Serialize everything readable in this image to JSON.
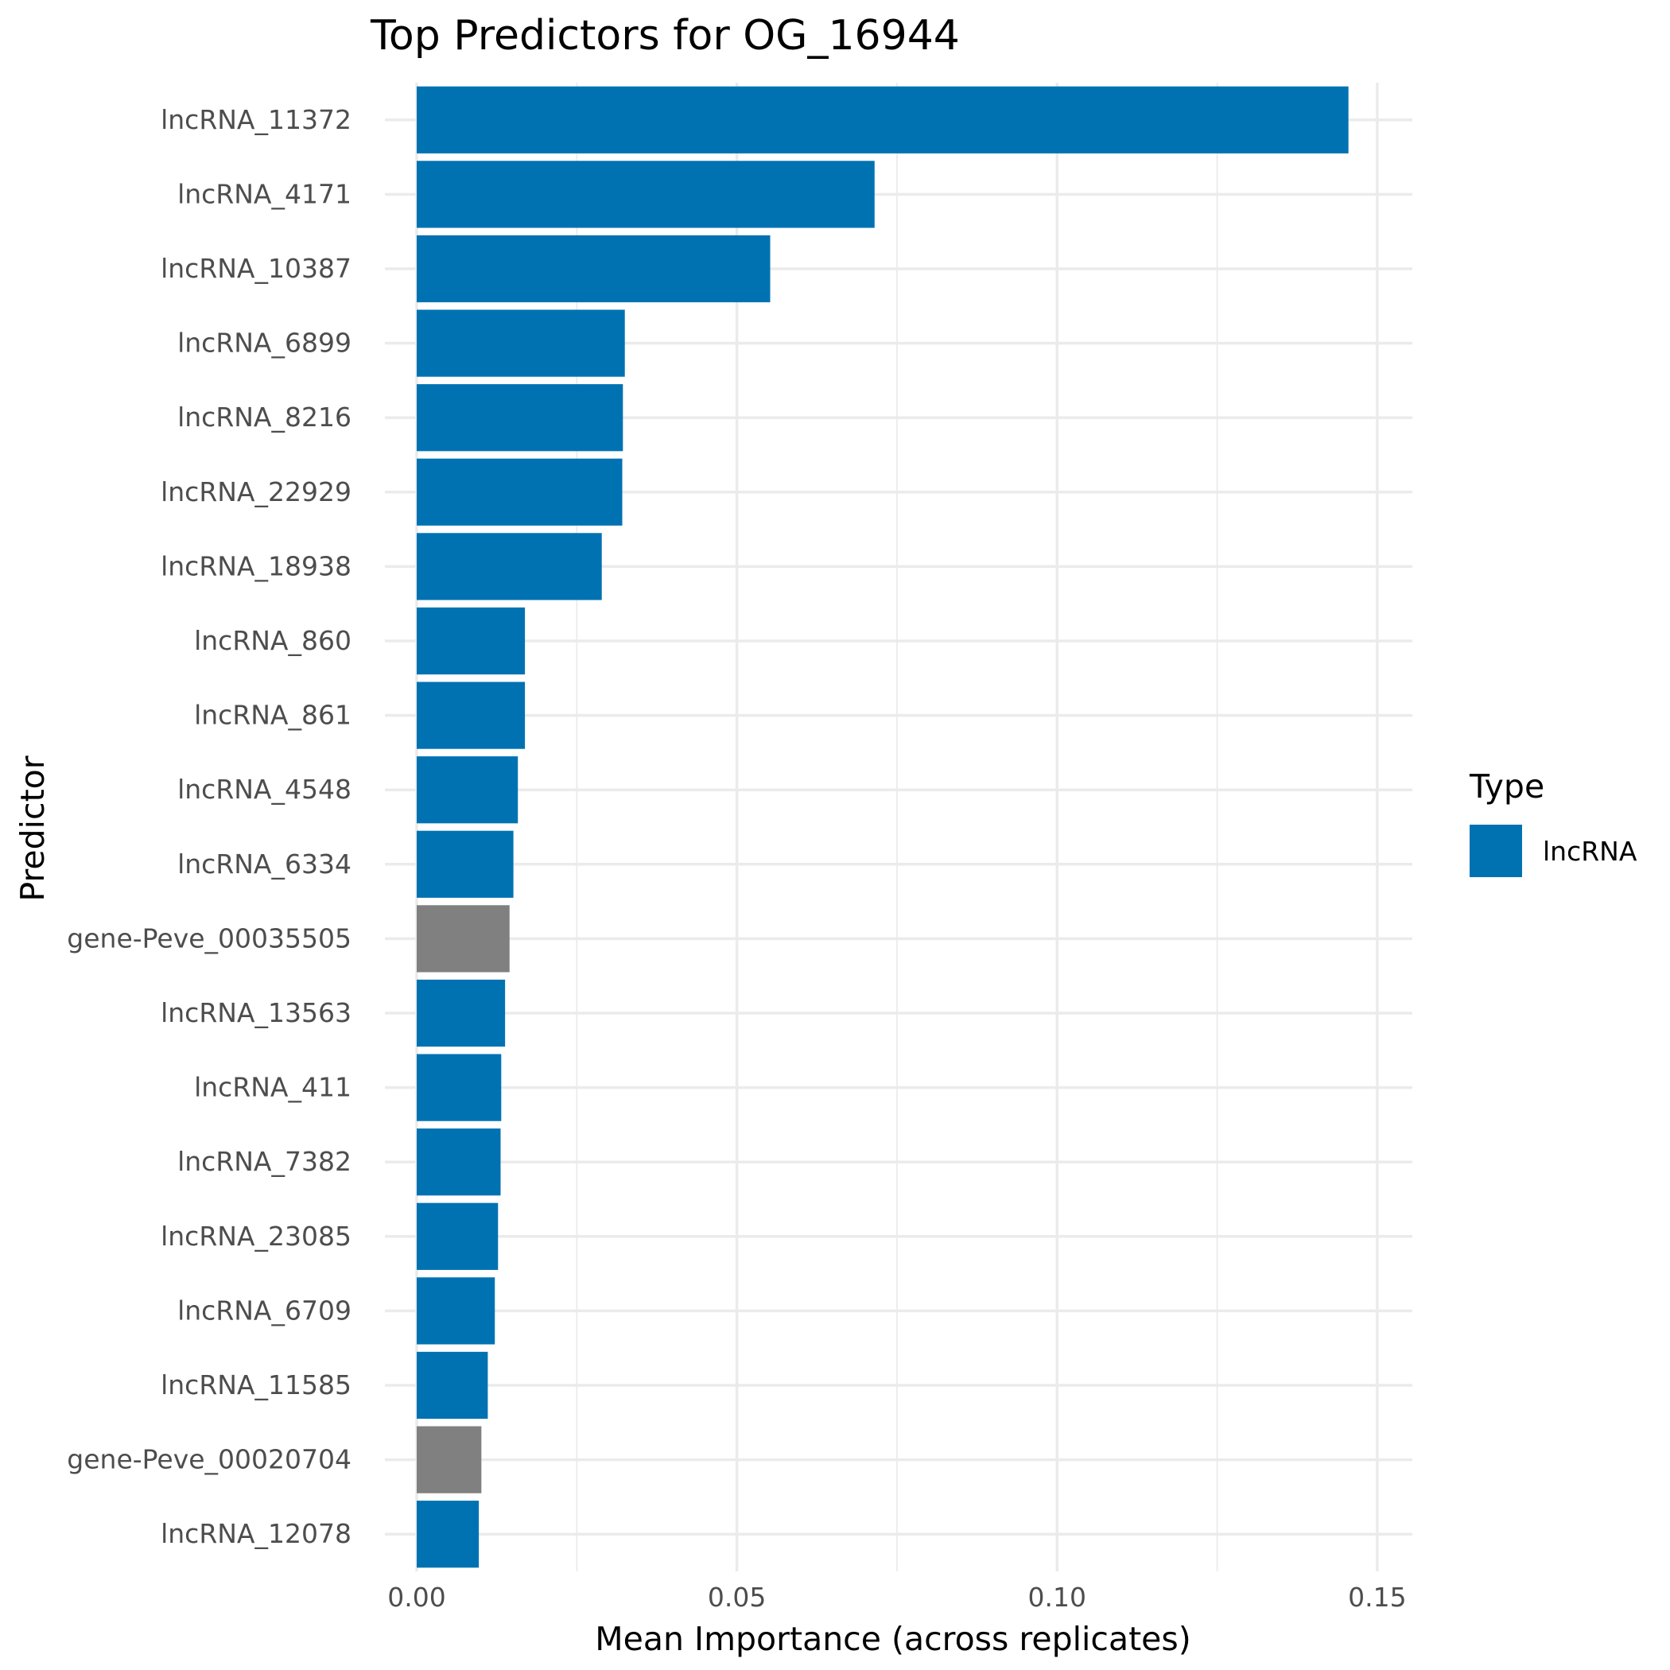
{
  "chart_data": {
    "type": "bar",
    "orientation": "horizontal",
    "title": "Top Predictors for OG_16944",
    "xlabel": "Mean Importance (across replicates)",
    "ylabel": "Predictor",
    "xlim": [
      0,
      0.152
    ],
    "xticks": [
      0.0,
      0.05,
      0.1,
      0.15
    ],
    "xtick_labels": [
      "0.00",
      "0.05",
      "0.10",
      "0.15"
    ],
    "grid": true,
    "categories": [
      "lncRNA_11372",
      "lncRNA_4171",
      "lncRNA_10387",
      "lncRNA_6899",
      "lncRNA_8216",
      "lncRNA_22929",
      "lncRNA_18938",
      "lncRNA_860",
      "lncRNA_861",
      "lncRNA_4548",
      "lncRNA_6334",
      "gene-Peve_00035505",
      "lncRNA_13563",
      "lncRNA_411",
      "lncRNA_7382",
      "lncRNA_23085",
      "lncRNA_6709",
      "lncRNA_11585",
      "gene-Peve_00020704",
      "lncRNA_12078"
    ],
    "values": [
      0.1455,
      0.0715,
      0.0552,
      0.0325,
      0.0322,
      0.0321,
      0.0289,
      0.0169,
      0.0169,
      0.0158,
      0.0151,
      0.0145,
      0.0138,
      0.0132,
      0.0131,
      0.0127,
      0.0122,
      0.0111,
      0.0101,
      0.0097
    ],
    "types": [
      "lncRNA",
      "lncRNA",
      "lncRNA",
      "lncRNA",
      "lncRNA",
      "lncRNA",
      "lncRNA",
      "lncRNA",
      "lncRNA",
      "lncRNA",
      "lncRNA",
      "gene",
      "lncRNA",
      "lncRNA",
      "lncRNA",
      "lncRNA",
      "lncRNA",
      "lncRNA",
      "gene",
      "lncRNA"
    ],
    "colors": {
      "lncRNA": "#0072B2",
      "gene": "#808080"
    },
    "legend": {
      "title": "Type",
      "entries": [
        {
          "label": "lncRNA",
          "type": "lncRNA"
        }
      ],
      "position": "right"
    }
  }
}
